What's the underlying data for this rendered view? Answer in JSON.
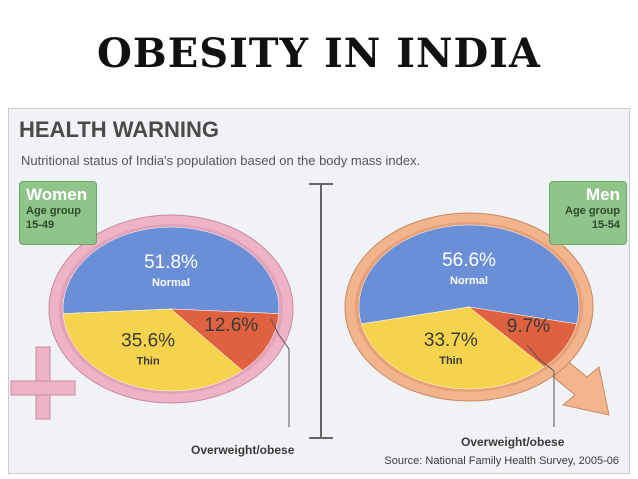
{
  "page_title": "OBESITY IN INDIA",
  "panel": {
    "title": "HEALTH WARNING",
    "subtitle": "Nutritional status of India's population based on the body mass index.",
    "source": "Source: National Family Health Survey, 2005-06"
  },
  "colors": {
    "normal": "#6b8fd6",
    "thin": "#f5d34c",
    "overweight": "#e0613f",
    "women_ring": "#eeb3c6",
    "men_ring": "#f2b48c"
  },
  "chart_data": [
    {
      "type": "pie",
      "group": "Women",
      "age_label": "Age group",
      "age_range": "15-49",
      "slices": [
        {
          "label": "Normal",
          "value": 51.8,
          "value_label": "51.8%"
        },
        {
          "label": "Thin",
          "value": 35.6,
          "value_label": "35.6%"
        },
        {
          "label": "Overweight/obese",
          "value": 12.6,
          "value_label": "12.6%"
        }
      ]
    },
    {
      "type": "pie",
      "group": "Men",
      "age_label": "Age group",
      "age_range": "15-54",
      "slices": [
        {
          "label": "Normal",
          "value": 56.6,
          "value_label": "56.6%"
        },
        {
          "label": "Thin",
          "value": 33.7,
          "value_label": "33.7%"
        },
        {
          "label": "Overweight/obese",
          "value": 9.7,
          "value_label": "9.7%"
        }
      ]
    }
  ]
}
